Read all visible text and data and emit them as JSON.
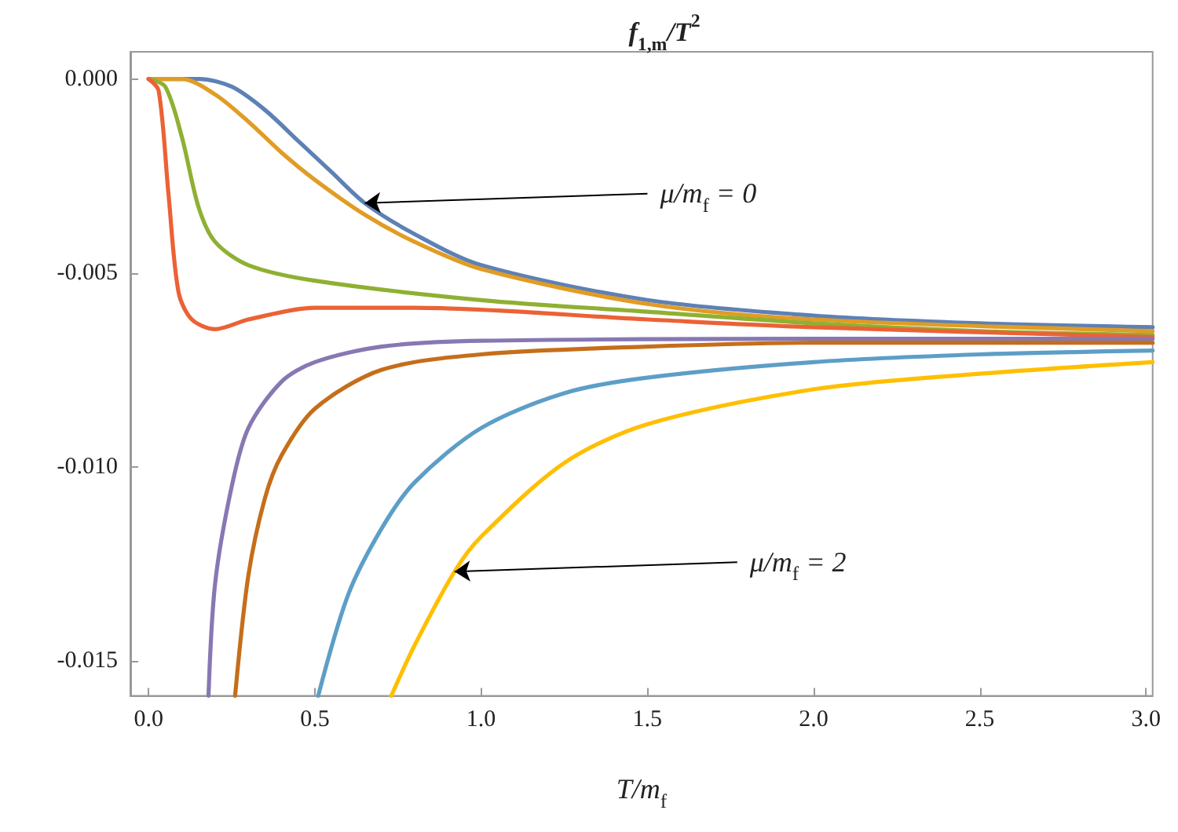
{
  "chart_data": {
    "type": "line",
    "title": "f$_{1,m}$/T$^{2}$",
    "xlabel": "T/m$_{f}$",
    "xlim": [
      -0.055,
      3.02
    ],
    "ylim": [
      -0.0159,
      0.0007
    ],
    "xticks": [
      {
        "value": 0,
        "label": "0.0"
      },
      {
        "value": 0.5,
        "label": "0.5"
      },
      {
        "value": 1,
        "label": "1.0"
      },
      {
        "value": 1.5,
        "label": "1.5"
      },
      {
        "value": 2,
        "label": "2.0"
      },
      {
        "value": 2.5,
        "label": "2.5"
      },
      {
        "value": 3,
        "label": "3.0"
      }
    ],
    "yticks": [
      {
        "value": -0.015,
        "label": "-0.015"
      },
      {
        "value": -0.01,
        "label": "-0.010"
      },
      {
        "value": -0.005,
        "label": "-0.005"
      },
      {
        "value": 0,
        "label": "0.000"
      }
    ],
    "grid": false,
    "marker": "none",
    "line_style": "solid",
    "series": [
      {
        "color": "#5e81b5",
        "x": [
          0,
          0.15,
          0.25,
          0.35,
          0.45,
          0.55,
          0.65,
          0.8,
          1,
          1.5,
          2,
          2.5,
          3.02
        ],
        "values": [
          0,
          0,
          -0.0002,
          -0.0008,
          -0.0016,
          -0.0024,
          -0.0032,
          -0.004,
          -0.0048,
          -0.0057,
          -0.0061,
          -0.0063,
          -0.0064
        ]
      },
      {
        "color": "#e19c24",
        "x": [
          0,
          0.1,
          0.2,
          0.3,
          0.4,
          0.5,
          0.65,
          0.8,
          1,
          1.5,
          2,
          3.02
        ],
        "values": [
          0,
          0,
          -0.0004,
          -0.0011,
          -0.0019,
          -0.0026,
          -0.0035,
          -0.0042,
          -0.0049,
          -0.0058,
          -0.0062,
          -0.0065
        ]
      },
      {
        "color": "#8fb032",
        "x": [
          0,
          0.05,
          0.1,
          0.15,
          0.2,
          0.3,
          0.5,
          1,
          1.5,
          2,
          2.5,
          3.02
        ],
        "values": [
          0,
          -0.0002,
          -0.0015,
          -0.0033,
          -0.0042,
          -0.0048,
          -0.0052,
          -0.0057,
          -0.006,
          -0.0063,
          -0.0065,
          -0.0066
        ]
      },
      {
        "color": "#eb6235",
        "x": [
          0,
          0.03,
          0.06,
          0.09,
          0.13,
          0.2,
          0.3,
          0.5,
          0.8,
          1.5,
          2,
          3.02
        ],
        "values": [
          0,
          -0.0003,
          -0.003,
          -0.0055,
          -0.0062,
          -0.00645,
          -0.0062,
          -0.0059,
          -0.0059,
          -0.0062,
          -0.0064,
          -0.00665
        ]
      },
      {
        "color": "#8778b3",
        "x": [
          0.18,
          0.2,
          0.25,
          0.3,
          0.4,
          0.5,
          0.7,
          1,
          2,
          3.02
        ],
        "values": [
          -0.0159,
          -0.013,
          -0.0105,
          -0.009,
          -0.0078,
          -0.0073,
          -0.0069,
          -0.00675,
          -0.0067,
          -0.0067
        ]
      },
      {
        "color": "#c56e1a",
        "x": [
          0.26,
          0.3,
          0.35,
          0.4,
          0.5,
          0.7,
          1,
          1.5,
          2,
          3.02
        ],
        "values": [
          -0.0159,
          -0.0128,
          -0.0108,
          -0.0097,
          -0.0085,
          -0.0075,
          -0.0071,
          -0.0069,
          -0.0068,
          -0.0068
        ]
      },
      {
        "color": "#5d9ec7",
        "x": [
          0.51,
          0.6,
          0.7,
          0.8,
          1,
          1.25,
          1.5,
          2,
          2.5,
          3.02
        ],
        "values": [
          -0.0159,
          -0.0133,
          -0.0116,
          -0.0104,
          -0.009,
          -0.0081,
          -0.0077,
          -0.0073,
          -0.0071,
          -0.007
        ]
      },
      {
        "color": "#ffbf00",
        "x": [
          0.73,
          0.8,
          0.92,
          1,
          1.25,
          1.5,
          2,
          2.5,
          3.02
        ],
        "values": [
          -0.0159,
          -0.0146,
          -0.0127,
          -0.0118,
          -0.0099,
          -0.0089,
          -0.008,
          -0.0076,
          -0.0073
        ]
      }
    ],
    "annotations": [
      {
        "text": "μ/m$_{f}$ = 0",
        "x": 0.65,
        "y": -0.0032
      },
      {
        "text": "μ/m$_{f}$ = 2",
        "x": 0.92,
        "y": -0.0127
      }
    ]
  }
}
